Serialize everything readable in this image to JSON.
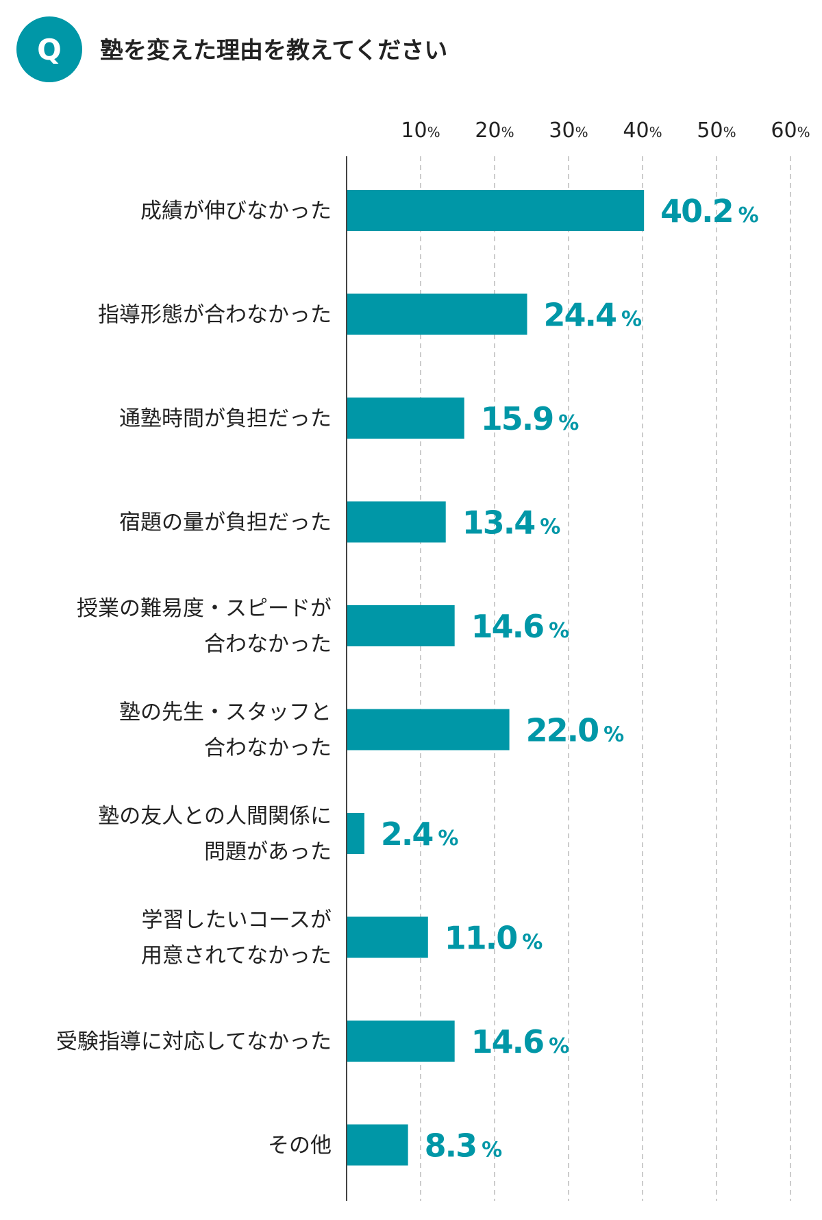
{
  "header": {
    "q_label": "Q",
    "title": "塾を変えた理由を教えてください"
  },
  "colors": {
    "accent": "#0097A7",
    "bar": "#0097A7",
    "text": "#222222",
    "grid": "#bbbbbb",
    "axis": "#444444"
  },
  "chart_data": {
    "type": "bar",
    "orientation": "horizontal",
    "categories": [
      "成績が伸びなかった",
      "指導形態が合わなかった",
      "通塾時間が負担だった",
      "宿題の量が負担だった",
      "授業の難易度・スピードが\n合わなかった",
      "塾の先生・スタッフと\n合わなかった",
      "塾の友人との人間関係に\n問題があった",
      "学習したいコースが\n用意されてなかった",
      "受験指導に対応してなかった",
      "その他"
    ],
    "values": [
      40.2,
      24.4,
      15.9,
      13.4,
      14.6,
      22.0,
      2.4,
      11.0,
      14.6,
      8.3
    ],
    "value_labels": [
      "40.2",
      "24.4",
      "15.9",
      "13.4",
      "14.6",
      "22.0",
      "2.4",
      "11.0",
      "14.6",
      "8.3"
    ],
    "value_suffix": "%",
    "ticks": [
      {
        "value": 10,
        "number": "10",
        "unit": "%"
      },
      {
        "value": 20,
        "number": "20",
        "unit": "%"
      },
      {
        "value": 30,
        "number": "30",
        "unit": "%"
      },
      {
        "value": 40,
        "number": "40",
        "unit": "%"
      },
      {
        "value": 50,
        "number": "50",
        "unit": "%"
      },
      {
        "value": 60,
        "number": "60",
        "unit": "%"
      }
    ],
    "xlim": [
      0,
      60
    ],
    "grid": true,
    "grid_style": "dashed vertical",
    "legend": "none"
  }
}
